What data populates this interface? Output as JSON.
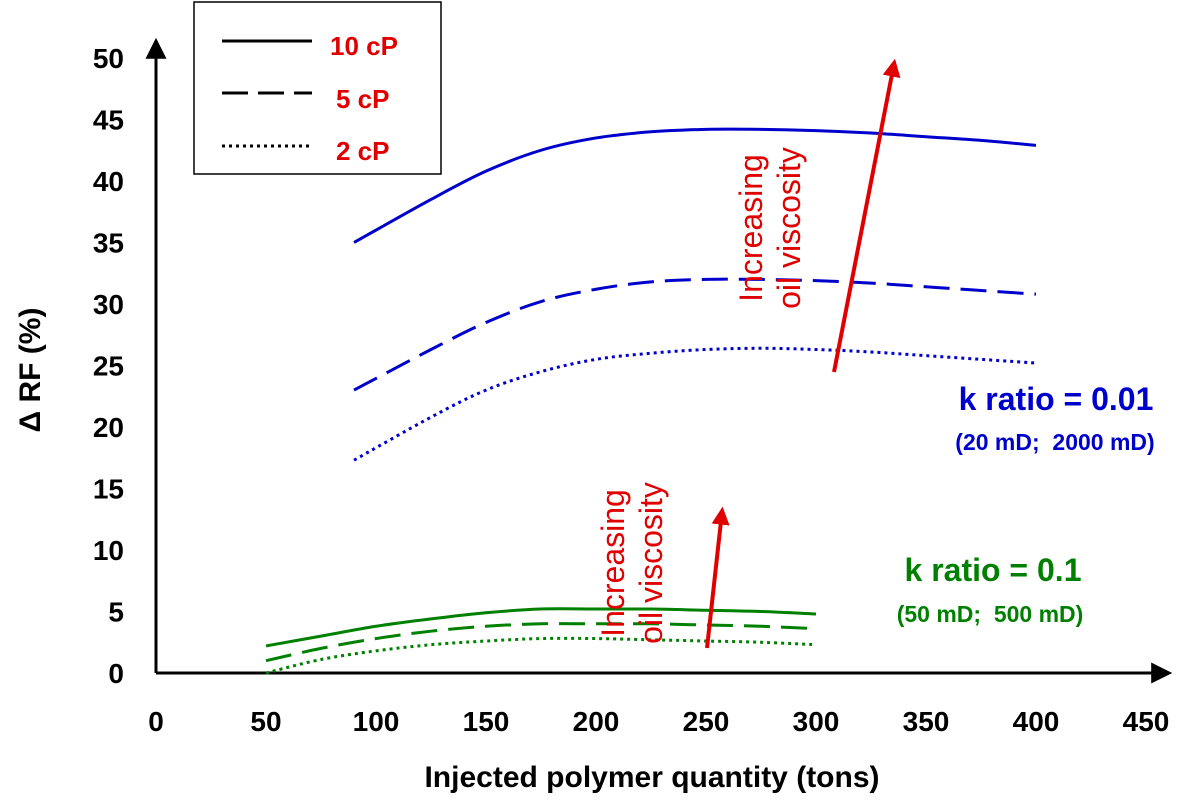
{
  "chart_data": {
    "type": "line",
    "xlabel": "Injected polymer quantity (tons)",
    "ylabel": "Δ RF (%)",
    "xlim": [
      0,
      450
    ],
    "ylim": [
      0,
      50
    ],
    "x_ticks": [
      0,
      50,
      100,
      150,
      200,
      250,
      300,
      350,
      400,
      450
    ],
    "y_ticks": [
      0,
      5,
      10,
      15,
      20,
      25,
      30,
      35,
      40,
      45,
      50
    ],
    "grid": false,
    "legend": {
      "position": "top-left",
      "entries": [
        {
          "label": "10 cP",
          "style": "solid"
        },
        {
          "label": "5 cP",
          "style": "dashed"
        },
        {
          "label": "2 cP",
          "style": "dotted"
        }
      ]
    },
    "series": [
      {
        "group": "k0.01",
        "viscosity": "10 cP",
        "style": "solid",
        "color": "#0000CC",
        "x": [
          90,
          125,
          150,
          175,
          200,
          225,
          250,
          275,
          300,
          325,
          350,
          375,
          400
        ],
        "y": [
          35.0,
          38.5,
          40.8,
          42.5,
          43.5,
          44.0,
          44.2,
          44.2,
          44.1,
          43.9,
          43.6,
          43.3,
          42.9
        ]
      },
      {
        "group": "k0.01",
        "viscosity": "5 cP",
        "style": "dashed",
        "color": "#0000CC",
        "x": [
          90,
          125,
          150,
          175,
          200,
          225,
          250,
          275,
          300,
          325,
          350,
          375,
          400
        ],
        "y": [
          23.0,
          26.3,
          28.5,
          30.2,
          31.2,
          31.8,
          32.0,
          32.0,
          31.9,
          31.7,
          31.4,
          31.1,
          30.8
        ]
      },
      {
        "group": "k0.01",
        "viscosity": "2 cP",
        "style": "dotted",
        "color": "#0000CC",
        "x": [
          90,
          125,
          150,
          175,
          200,
          225,
          250,
          275,
          300,
          325,
          350,
          375,
          400
        ],
        "y": [
          17.3,
          20.8,
          23.0,
          24.5,
          25.5,
          26.0,
          26.3,
          26.4,
          26.3,
          26.1,
          25.8,
          25.5,
          25.2
        ]
      },
      {
        "group": "k0.1",
        "viscosity": "10 cP",
        "style": "solid",
        "color": "#008000",
        "x": [
          50,
          75,
          100,
          125,
          150,
          175,
          200,
          225,
          250,
          275,
          300
        ],
        "y": [
          2.2,
          3.0,
          3.8,
          4.4,
          4.9,
          5.2,
          5.2,
          5.2,
          5.1,
          5.0,
          4.8
        ]
      },
      {
        "group": "k0.1",
        "viscosity": "5 cP",
        "style": "dashed",
        "color": "#008000",
        "x": [
          50,
          75,
          100,
          125,
          150,
          175,
          200,
          225,
          250,
          275,
          300
        ],
        "y": [
          1.0,
          2.0,
          2.8,
          3.4,
          3.8,
          4.0,
          4.0,
          4.0,
          3.9,
          3.8,
          3.6
        ]
      },
      {
        "group": "k0.1",
        "viscosity": "2 cP",
        "style": "dotted",
        "color": "#008000",
        "x": [
          50,
          75,
          100,
          125,
          150,
          175,
          200,
          225,
          250,
          275,
          300
        ],
        "y": [
          0.0,
          1.1,
          1.8,
          2.3,
          2.6,
          2.8,
          2.8,
          2.7,
          2.6,
          2.5,
          2.3
        ]
      }
    ],
    "annotations": {
      "k001_title": "k ratio = 0.01",
      "k001_sub": "(20 mD;  2000 mD)",
      "k01_title": "k ratio = 0.1",
      "k01_sub": "(50 mD;  500 mD)",
      "arrow1_line1": "Increasing",
      "arrow1_line2": "oil viscosity",
      "arrow2_line1": "Increasing",
      "arrow2_line2": "oil viscosity"
    },
    "colors": {
      "k001": "#0000CC",
      "k01": "#008000",
      "legend_text": "#E00000",
      "arrow": "#E00000",
      "axis": "#000000"
    }
  }
}
